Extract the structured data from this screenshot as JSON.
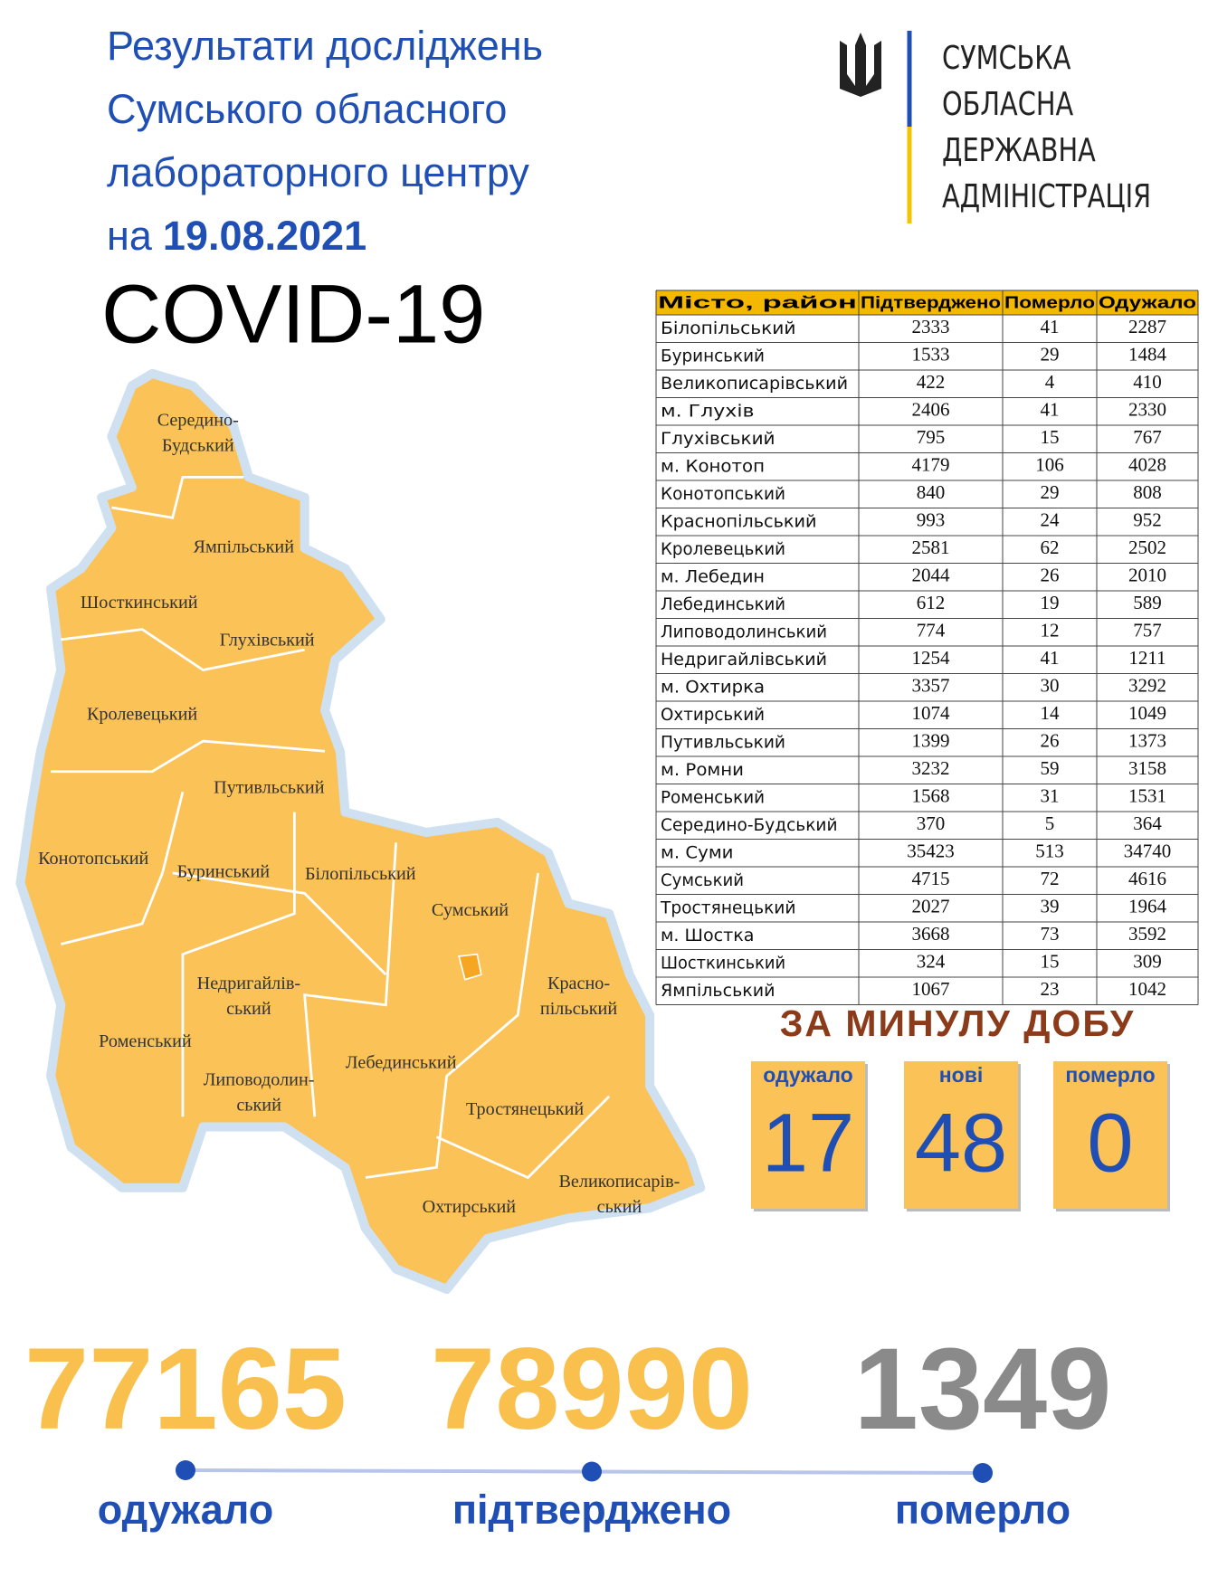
{
  "header": {
    "title_lines": [
      "Результати досліджень",
      "Сумського обласного",
      "лабораторного центру"
    ],
    "date_prefix": "на",
    "date": "19.08.2021",
    "subject": "COVID-19"
  },
  "logo": {
    "lines": [
      "СУМСЬКА",
      "ОБЛАСНА",
      "ДЕРЖАВНА",
      "АДМІНІСТРАЦІЯ"
    ]
  },
  "table": {
    "columns": [
      "Місто, район",
      "Підтверджено",
      "Померло",
      "Одужало"
    ],
    "rows": [
      [
        "Білопільський",
        2333,
        41,
        2287
      ],
      [
        "Буринський",
        1533,
        29,
        1484
      ],
      [
        "Великописарівський",
        422,
        4,
        410
      ],
      [
        "м. Глухів",
        2406,
        41,
        2330
      ],
      [
        "Глухівський",
        795,
        15,
        767
      ],
      [
        "м. Конотоп",
        4179,
        106,
        4028
      ],
      [
        "Конотопський",
        840,
        29,
        808
      ],
      [
        "Краснопільський",
        993,
        24,
        952
      ],
      [
        "Кролевецький",
        2581,
        62,
        2502
      ],
      [
        "м. Лебедин",
        2044,
        26,
        2010
      ],
      [
        "Лебединський",
        612,
        19,
        589
      ],
      [
        "Липоводолинський",
        774,
        12,
        757
      ],
      [
        "Недригайлівський",
        1254,
        41,
        1211
      ],
      [
        "м. Охтирка",
        3357,
        30,
        3292
      ],
      [
        "Охтирський",
        1074,
        14,
        1049
      ],
      [
        "Путивльський",
        1399,
        26,
        1373
      ],
      [
        "м. Ромни",
        3232,
        59,
        3158
      ],
      [
        "Роменський",
        1568,
        31,
        1531
      ],
      [
        "Середино-Будський",
        370,
        5,
        364
      ],
      [
        "м. Суми",
        35423,
        513,
        34740
      ],
      [
        "Сумський",
        4715,
        72,
        4616
      ],
      [
        "Тростянецький",
        2027,
        39,
        1964
      ],
      [
        "м. Шостка",
        3668,
        73,
        3592
      ],
      [
        "Шосткинський",
        324,
        15,
        309
      ],
      [
        "Ямпільський",
        1067,
        23,
        1042
      ]
    ]
  },
  "daily": {
    "title": "ЗА МИНУЛУ ДОБУ",
    "items": [
      {
        "label": "одужало",
        "value": 17
      },
      {
        "label": "нові",
        "value": 48
      },
      {
        "label": "померло",
        "value": 0
      }
    ]
  },
  "totals": [
    {
      "value": 77165,
      "label": "одужало"
    },
    {
      "value": 78990,
      "label": "підтверджено"
    },
    {
      "value": 1349,
      "label": "померло"
    }
  ],
  "map": {
    "regions": [
      [
        "Середино-",
        "Будський"
      ],
      [
        "Ямпільський"
      ],
      [
        "Шосткинський"
      ],
      [
        "Глухівський"
      ],
      [
        "Кролевецький"
      ],
      [
        "Путивльський"
      ],
      [
        "Конотопський"
      ],
      [
        "Буринський"
      ],
      [
        "Білопільський"
      ],
      [
        "Сумський"
      ],
      [
        "Недригайлів-",
        "ський"
      ],
      [
        "Красно-",
        "пільський"
      ],
      [
        "Роменський"
      ],
      [
        "Лебединський"
      ],
      [
        "Липоводолин-",
        "ський"
      ],
      [
        "Тростянецький"
      ],
      [
        "Великописарів-",
        "ський"
      ],
      [
        "Охтирський"
      ]
    ]
  }
}
